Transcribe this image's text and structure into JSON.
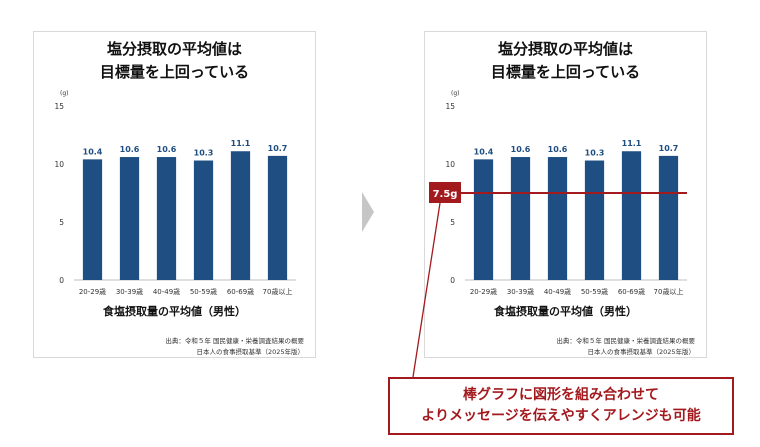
{
  "colors": {
    "bar": "#1f4e82",
    "accent": "#a31a1e",
    "axis_text": "#333333"
  },
  "chart_data": [
    {
      "type": "bar",
      "title": "塩分摂取の平均値は\n目標量を上回っている",
      "unit": "(g)",
      "categories": [
        "20-29歳",
        "30-39歳",
        "40-49歳",
        "50-59歳",
        "60-69歳",
        "70歳以上"
      ],
      "values": [
        10.4,
        10.6,
        10.6,
        10.3,
        11.1,
        10.7
      ],
      "ylim": [
        0,
        15
      ],
      "yticks": [
        0,
        5,
        10,
        15
      ],
      "xlabel": "食塩摂取量の平均値（男性）",
      "source_lines": [
        "出典：令和５年 国民健康・栄養調査結果の概要",
        "日本人の食事摂取基準（2025年版）"
      ]
    },
    {
      "type": "bar",
      "title": "塩分摂取の平均値は\n目標量を上回っている",
      "unit": "(g)",
      "categories": [
        "20-29歳",
        "30-39歳",
        "40-49歳",
        "50-59歳",
        "60-69歳",
        "70歳以上"
      ],
      "values": [
        10.4,
        10.6,
        10.6,
        10.3,
        11.1,
        10.7
      ],
      "ylim": [
        0,
        15
      ],
      "yticks": [
        0,
        5,
        10,
        15
      ],
      "xlabel": "食塩摂取量の平均値（男性）",
      "source_lines": [
        "出典：令和５年 国民健康・栄養調査結果の概要",
        "日本人の食事摂取基準（2025年版）"
      ],
      "reference_line": {
        "value": 7.5,
        "label": "7.5g"
      }
    }
  ],
  "callout": {
    "line1": "棒グラフに図形を組み合わせて",
    "line2": "よりメッセージを伝えやすくアレンジも可能"
  }
}
